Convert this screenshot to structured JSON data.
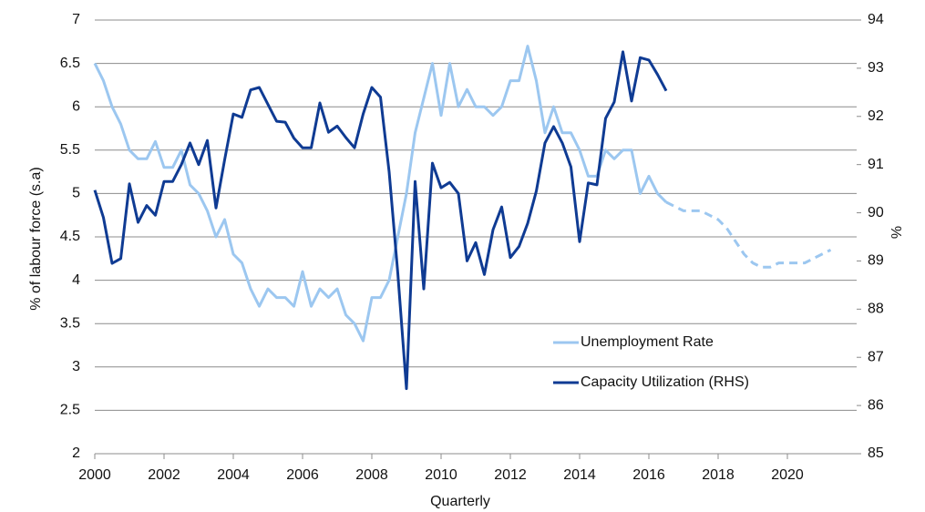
{
  "chart_data": {
    "type": "line",
    "x_label": "Quarterly",
    "y_label": "% of labour force (s.a)",
    "y2_label": "%",
    "x": [
      2000,
      2000.25,
      2000.5,
      2000.75,
      2001,
      2001.25,
      2001.5,
      2001.75,
      2002,
      2002.25,
      2002.5,
      2002.75,
      2003,
      2003.25,
      2003.5,
      2003.75,
      2004,
      2004.25,
      2004.5,
      2004.75,
      2005,
      2005.25,
      2005.5,
      2005.75,
      2006,
      2006.25,
      2006.5,
      2006.75,
      2007,
      2007.25,
      2007.5,
      2007.75,
      2008,
      2008.25,
      2008.5,
      2008.75,
      2009,
      2009.25,
      2009.5,
      2009.75,
      2010,
      2010.25,
      2010.5,
      2010.75,
      2011,
      2011.25,
      2011.5,
      2011.75,
      2012,
      2012.25,
      2012.5,
      2012.75,
      2013,
      2013.25,
      2013.5,
      2013.75,
      2014,
      2014.25,
      2014.5,
      2014.75,
      2015,
      2015.25,
      2015.5,
      2015.75,
      2016,
      2016.25,
      2016.5,
      2016.75,
      2017,
      2017.25,
      2017.5,
      2017.75,
      2018,
      2018.25,
      2018.5,
      2018.75,
      2019,
      2019.25,
      2019.5,
      2019.75,
      2020,
      2020.25,
      2020.5,
      2020.75,
      2021,
      2021.25
    ],
    "series": [
      {
        "name": "Unemployment Rate",
        "color": "#9cc7f0",
        "dash_from": 2016.5,
        "values": [
          6.5,
          6.3,
          6.0,
          5.8,
          5.5,
          5.4,
          5.4,
          5.6,
          5.3,
          5.3,
          5.5,
          5.1,
          5.0,
          4.8,
          4.5,
          4.7,
          4.3,
          4.2,
          3.9,
          3.7,
          3.9,
          3.8,
          3.8,
          3.7,
          4.1,
          3.7,
          3.9,
          3.8,
          3.9,
          3.6,
          3.5,
          3.3,
          3.8,
          3.8,
          4.0,
          4.5,
          5.0,
          5.7,
          6.1,
          6.5,
          5.9,
          6.5,
          6.0,
          6.2,
          6.0,
          6.0,
          5.9,
          6.0,
          6.3,
          6.3,
          6.7,
          6.3,
          5.7,
          6.0,
          5.7,
          5.7,
          5.5,
          5.2,
          5.2,
          5.5,
          5.4,
          5.5,
          5.5,
          5.0,
          5.2,
          5.0,
          4.9,
          4.85,
          4.8,
          4.8,
          4.8,
          4.75,
          4.7,
          4.6,
          4.45,
          4.3,
          4.2,
          4.15,
          4.15,
          4.2,
          4.2,
          4.2,
          4.2,
          4.25,
          4.3,
          4.35
        ]
      },
      {
        "name": "Capacity Utilization (RHS)",
        "color": "#0f3b93",
        "axis": "y2",
        "values": [
          90.47,
          89.9,
          88.95,
          89.05,
          90.6,
          89.8,
          90.15,
          89.95,
          90.65,
          90.65,
          91.0,
          91.45,
          91.0,
          91.5,
          90.1,
          91.1,
          92.05,
          91.98,
          92.55,
          92.6,
          92.25,
          91.9,
          91.88,
          91.55,
          91.35,
          91.35,
          92.28,
          91.67,
          91.8,
          91.56,
          91.35,
          92.05,
          92.6,
          92.4,
          90.85,
          88.75,
          86.35,
          90.65,
          88.42,
          91.03,
          90.52,
          90.63,
          90.4,
          89.0,
          89.38,
          88.72,
          89.65,
          90.12,
          89.07,
          89.3,
          89.78,
          90.45,
          91.45,
          91.79,
          91.45,
          90.95,
          89.4,
          90.62,
          90.58,
          91.96,
          92.3,
          93.34,
          92.32,
          93.22,
          93.17,
          92.87,
          92.53,
          null,
          null,
          null,
          null,
          null,
          null,
          null,
          null,
          null,
          null,
          null,
          null,
          null,
          null,
          null,
          null,
          null,
          null,
          null
        ]
      }
    ],
    "xlim": [
      2000,
      2022
    ],
    "xticks": [
      2000,
      2002,
      2004,
      2006,
      2008,
      2010,
      2012,
      2014,
      2016,
      2018,
      2020
    ],
    "ylim": [
      2,
      7
    ],
    "yticks": [
      2,
      2.5,
      3,
      3.5,
      4,
      4.5,
      5,
      5.5,
      6,
      6.5,
      7
    ],
    "y2lim": [
      85,
      94
    ],
    "y2ticks": [
      85,
      86,
      87,
      88,
      89,
      90,
      91,
      92,
      93,
      94
    ],
    "grid": true,
    "legend": "lower right"
  }
}
